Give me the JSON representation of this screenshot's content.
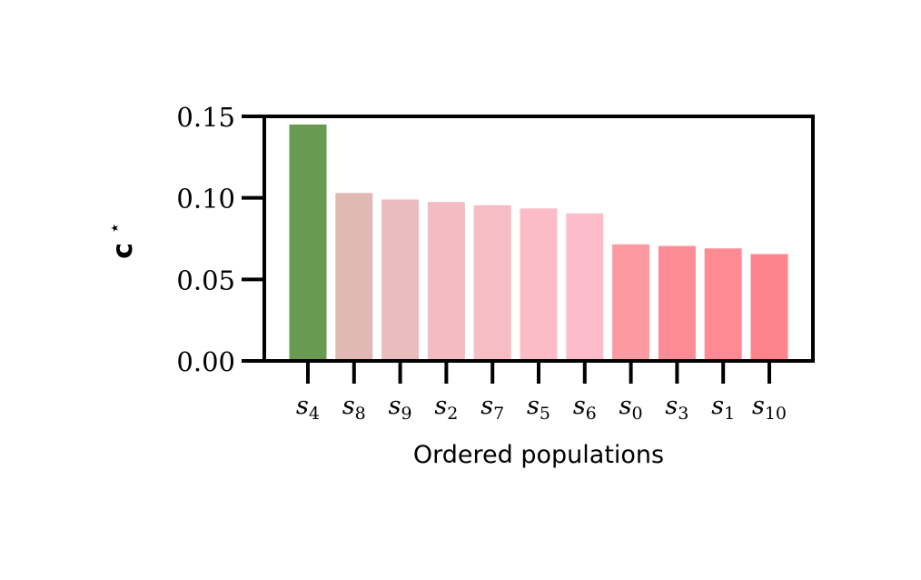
{
  "chart_data": {
    "type": "bar",
    "categories": [
      "s4",
      "s8",
      "s9",
      "s2",
      "s7",
      "s5",
      "s6",
      "s0",
      "s3",
      "s1",
      "s10"
    ],
    "category_labels": [
      {
        "base": "s",
        "sub": "4"
      },
      {
        "base": "s",
        "sub": "8"
      },
      {
        "base": "s",
        "sub": "9"
      },
      {
        "base": "s",
        "sub": "2"
      },
      {
        "base": "s",
        "sub": "7"
      },
      {
        "base": "s",
        "sub": "5"
      },
      {
        "base": "s",
        "sub": "6"
      },
      {
        "base": "s",
        "sub": "0"
      },
      {
        "base": "s",
        "sub": "3"
      },
      {
        "base": "s",
        "sub": "1"
      },
      {
        "base": "s",
        "sub": "10"
      }
    ],
    "values": [
      0.145,
      0.103,
      0.099,
      0.0975,
      0.0955,
      0.0935,
      0.0905,
      0.0715,
      0.0705,
      0.069,
      0.0655
    ],
    "colors": [
      "#689a52",
      "#e0b8b4",
      "#ebbcbd",
      "#f3bcc2",
      "#f6bdc4",
      "#fbbcc8",
      "#fcbcca",
      "#fb9aa1",
      "#fc8c96",
      "#fe8b93",
      "#fe848c"
    ],
    "title": "",
    "xlabel": "Ordered populations",
    "ylabel_base": "c",
    "ylabel_sup": "⋆",
    "ylim": [
      0,
      0.15
    ],
    "yticks": [
      0.0,
      0.05,
      0.1,
      0.15
    ],
    "ytick_labels": [
      "0.00",
      "0.05",
      "0.10",
      "0.15"
    ],
    "grid": false,
    "legend": "none"
  }
}
